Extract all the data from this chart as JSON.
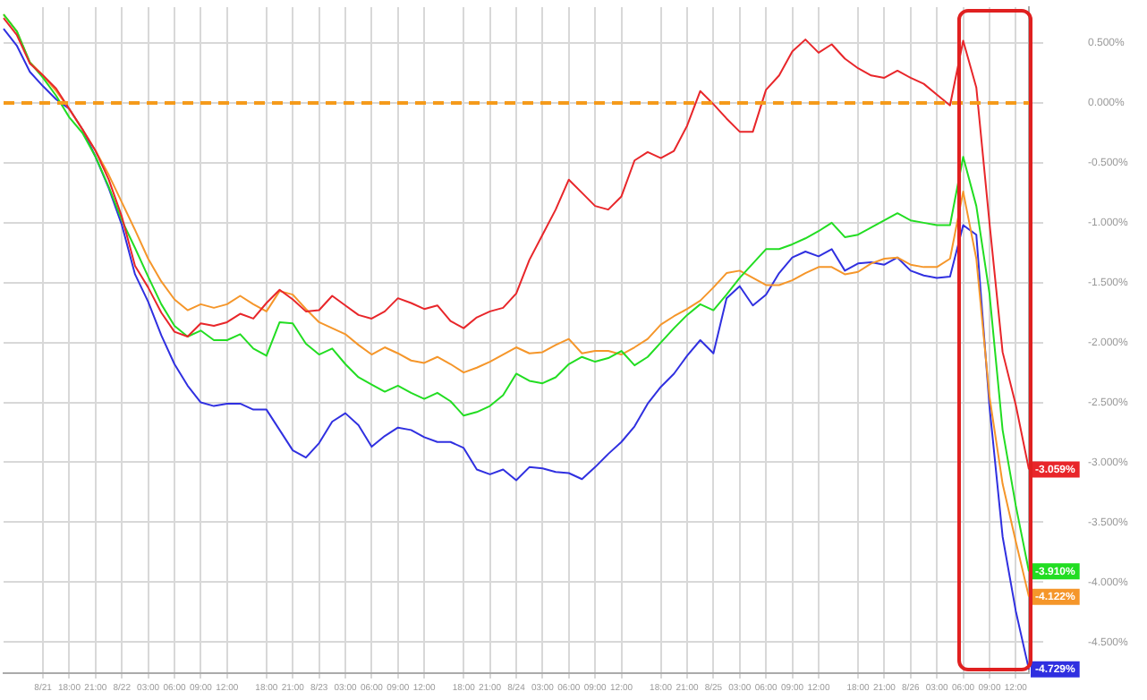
{
  "chart_data": {
    "type": "line",
    "categories": [
      null,
      null,
      null,
      "8/21",
      null,
      "18:00",
      null,
      "21:00",
      null,
      "8/22",
      null,
      "03:00",
      null,
      "06:00",
      null,
      "09:00",
      null,
      "12:00",
      null,
      null,
      "18:00",
      null,
      "21:00",
      null,
      "8/23",
      null,
      "03:00",
      null,
      "06:00",
      null,
      "09:00",
      null,
      "12:00",
      null,
      null,
      "18:00",
      null,
      "21:00",
      null,
      "8/24",
      null,
      "03:00",
      null,
      "06:00",
      null,
      "09:00",
      null,
      "12:00",
      null,
      null,
      "18:00",
      null,
      "21:00",
      null,
      "8/25",
      null,
      "03:00",
      null,
      "06:00",
      null,
      "09:00",
      null,
      "12:00",
      null,
      null,
      "18:00",
      null,
      "21:00",
      null,
      "8/26",
      null,
      "03:00",
      null,
      "06:00",
      null,
      "09:00",
      null,
      "12:00",
      null
    ],
    "series": [
      {
        "color": "#e8262a",
        "value_labels": [
          null,
          null,
          null,
          null,
          null,
          null,
          null,
          null,
          null,
          null,
          null,
          null,
          null,
          null,
          null,
          null,
          null,
          null,
          null,
          null,
          null,
          null,
          null,
          null,
          null,
          null,
          null,
          null,
          null,
          null,
          null,
          null,
          null,
          null,
          null,
          null,
          null,
          null,
          null,
          null,
          null,
          null,
          null,
          null,
          null,
          null,
          null,
          null,
          null,
          null,
          null,
          null,
          null,
          null,
          null,
          null,
          null,
          null,
          null,
          null,
          null,
          null,
          null,
          null,
          null,
          null,
          null,
          null,
          null,
          null,
          null,
          null,
          null,
          null,
          null,
          null,
          null,
          null,
          "-3.059%"
        ],
        "values": [
          0.71,
          0.57,
          0.33,
          0.23,
          0.12,
          -0.05,
          -0.22,
          -0.4,
          -0.64,
          -0.95,
          -1.36,
          -1.54,
          -1.75,
          -1.91,
          -1.95,
          -1.84,
          -1.86,
          -1.83,
          -1.76,
          -1.8,
          -1.67,
          -1.56,
          -1.64,
          -1.74,
          -1.73,
          -1.61,
          -1.69,
          -1.77,
          -1.8,
          -1.74,
          -1.63,
          -1.67,
          -1.72,
          -1.69,
          -1.82,
          -1.88,
          -1.79,
          -1.74,
          -1.71,
          -1.59,
          -1.31,
          -1.1,
          -0.89,
          -0.64,
          -0.75,
          -0.86,
          -0.89,
          -0.78,
          -0.48,
          -0.41,
          -0.46,
          -0.4,
          -0.19,
          0.1,
          -0.01,
          -0.13,
          -0.24,
          -0.24,
          0.11,
          0.23,
          0.43,
          0.53,
          0.42,
          0.49,
          0.37,
          0.29,
          0.23,
          0.21,
          0.27,
          0.21,
          0.16,
          0.07,
          -0.02,
          0.52,
          0.13,
          -1.0,
          -2.08,
          -2.52,
          -3.059
        ]
      },
      {
        "color": "#22dd22",
        "value_labels": [
          null,
          null,
          null,
          null,
          null,
          null,
          null,
          null,
          null,
          null,
          null,
          null,
          null,
          null,
          null,
          null,
          null,
          null,
          null,
          null,
          null,
          null,
          null,
          null,
          null,
          null,
          null,
          null,
          null,
          null,
          null,
          null,
          null,
          null,
          null,
          null,
          null,
          null,
          null,
          null,
          null,
          null,
          null,
          null,
          null,
          null,
          null,
          null,
          null,
          null,
          null,
          null,
          null,
          null,
          null,
          null,
          null,
          null,
          null,
          null,
          null,
          null,
          null,
          null,
          null,
          null,
          null,
          null,
          null,
          null,
          null,
          null,
          null,
          null,
          null,
          null,
          null,
          null,
          "-3.910%"
        ],
        "values": [
          0.74,
          0.6,
          0.34,
          0.21,
          0.06,
          -0.12,
          -0.25,
          -0.45,
          -0.7,
          -0.98,
          -1.21,
          -1.45,
          -1.68,
          -1.86,
          -1.95,
          -1.9,
          -1.98,
          -1.98,
          -1.93,
          -2.05,
          -2.11,
          -1.83,
          -1.84,
          -2.01,
          -2.1,
          -2.05,
          -2.18,
          -2.29,
          -2.35,
          -2.41,
          -2.36,
          -2.42,
          -2.47,
          -2.42,
          -2.49,
          -2.61,
          -2.58,
          -2.53,
          -2.44,
          -2.26,
          -2.32,
          -2.34,
          -2.29,
          -2.18,
          -2.12,
          -2.16,
          -2.13,
          -2.07,
          -2.19,
          -2.12,
          -2.0,
          -1.88,
          -1.77,
          -1.68,
          -1.73,
          -1.6,
          -1.46,
          -1.34,
          -1.22,
          -1.22,
          -1.18,
          -1.13,
          -1.07,
          -1.0,
          -1.12,
          -1.1,
          -1.04,
          -0.98,
          -0.92,
          -0.98,
          -1.0,
          -1.02,
          -1.02,
          -0.45,
          -0.86,
          -1.59,
          -2.73,
          -3.36,
          -3.91
        ]
      },
      {
        "color": "#f5962a",
        "value_labels": [
          null,
          null,
          null,
          null,
          null,
          null,
          null,
          null,
          null,
          null,
          null,
          null,
          null,
          null,
          null,
          null,
          null,
          null,
          null,
          null,
          null,
          null,
          null,
          null,
          null,
          null,
          null,
          null,
          null,
          null,
          null,
          null,
          null,
          null,
          null,
          null,
          null,
          null,
          null,
          null,
          null,
          null,
          null,
          null,
          null,
          null,
          null,
          null,
          null,
          null,
          null,
          null,
          null,
          null,
          null,
          null,
          null,
          null,
          null,
          null,
          null,
          null,
          null,
          null,
          null,
          null,
          null,
          null,
          null,
          null,
          null,
          null,
          null,
          null,
          null,
          null,
          null,
          null,
          "-4.122%"
        ],
        "values": [
          0.74,
          0.6,
          0.34,
          0.23,
          0.1,
          -0.05,
          -0.22,
          -0.4,
          -0.6,
          -0.83,
          -1.06,
          -1.3,
          -1.49,
          -1.64,
          -1.73,
          -1.68,
          -1.71,
          -1.68,
          -1.61,
          -1.68,
          -1.74,
          -1.57,
          -1.6,
          -1.72,
          -1.83,
          -1.88,
          -1.93,
          -2.02,
          -2.1,
          -2.04,
          -2.09,
          -2.15,
          -2.17,
          -2.12,
          -2.18,
          -2.25,
          -2.21,
          -2.16,
          -2.1,
          -2.04,
          -2.09,
          -2.08,
          -2.02,
          -1.97,
          -2.09,
          -2.07,
          -2.07,
          -2.1,
          -2.04,
          -1.97,
          -1.85,
          -1.78,
          -1.72,
          -1.65,
          -1.54,
          -1.42,
          -1.4,
          -1.46,
          -1.52,
          -1.52,
          -1.48,
          -1.42,
          -1.37,
          -1.37,
          -1.43,
          -1.41,
          -1.34,
          -1.3,
          -1.29,
          -1.35,
          -1.37,
          -1.37,
          -1.3,
          -0.74,
          -1.3,
          -2.45,
          -3.18,
          -3.66,
          -4.122
        ]
      },
      {
        "color": "#3030e0",
        "value_labels": [
          null,
          null,
          null,
          null,
          null,
          null,
          null,
          null,
          null,
          null,
          null,
          null,
          null,
          null,
          null,
          null,
          null,
          null,
          null,
          null,
          null,
          null,
          null,
          null,
          null,
          null,
          null,
          null,
          null,
          null,
          null,
          null,
          null,
          null,
          null,
          null,
          null,
          null,
          null,
          null,
          null,
          null,
          null,
          null,
          null,
          null,
          null,
          null,
          null,
          null,
          null,
          null,
          null,
          null,
          null,
          null,
          null,
          null,
          null,
          null,
          null,
          null,
          null,
          null,
          null,
          null,
          null,
          null,
          null,
          null,
          null,
          null,
          null,
          null,
          null,
          null,
          null,
          null,
          "-4.729%"
        ],
        "values": [
          0.62,
          0.48,
          0.26,
          0.14,
          0.03,
          -0.05,
          -0.22,
          -0.45,
          -0.71,
          -1.02,
          -1.43,
          -1.66,
          -1.94,
          -2.18,
          -2.36,
          -2.5,
          -2.53,
          -2.51,
          -2.51,
          -2.56,
          -2.56,
          -2.73,
          -2.9,
          -2.96,
          -2.84,
          -2.66,
          -2.59,
          -2.69,
          -2.87,
          -2.78,
          -2.71,
          -2.73,
          -2.79,
          -2.83,
          -2.83,
          -2.88,
          -3.06,
          -3.1,
          -3.06,
          -3.15,
          -3.04,
          -3.05,
          -3.08,
          -3.09,
          -3.14,
          -3.04,
          -2.93,
          -2.83,
          -2.7,
          -2.51,
          -2.37,
          -2.26,
          -2.11,
          -1.98,
          -2.09,
          -1.63,
          -1.53,
          -1.69,
          -1.6,
          -1.42,
          -1.29,
          -1.24,
          -1.28,
          -1.22,
          -1.4,
          -1.34,
          -1.33,
          -1.35,
          -1.29,
          -1.4,
          -1.44,
          -1.46,
          -1.45,
          -1.02,
          -1.1,
          -2.53,
          -3.62,
          -4.24,
          -4.729
        ]
      }
    ],
    "ylim": [
      -4.76,
      0.8
    ],
    "yticks": [
      {
        "value": 0.5,
        "label": "0.500%"
      },
      {
        "value": 0,
        "label": "0.000%"
      },
      {
        "value": -0.5,
        "label": "-0.500%"
      },
      {
        "value": -1,
        "label": "-1.000%"
      },
      {
        "value": -1.5,
        "label": "-1.500%"
      },
      {
        "value": -2,
        "label": "-2.000%"
      },
      {
        "value": -2.5,
        "label": "-2.500%"
      },
      {
        "value": -3,
        "label": "-3.000%"
      },
      {
        "value": -3.5,
        "label": "-3.500%"
      },
      {
        "value": -4,
        "label": "-4.000%"
      },
      {
        "value": -4.5,
        "label": "-4.500%"
      }
    ],
    "ref_lines": [
      {
        "axis": "y",
        "value": 0,
        "color": "#f59a1a",
        "line_style": "dashed"
      }
    ],
    "grid": true,
    "legend": false,
    "marker": "none"
  }
}
